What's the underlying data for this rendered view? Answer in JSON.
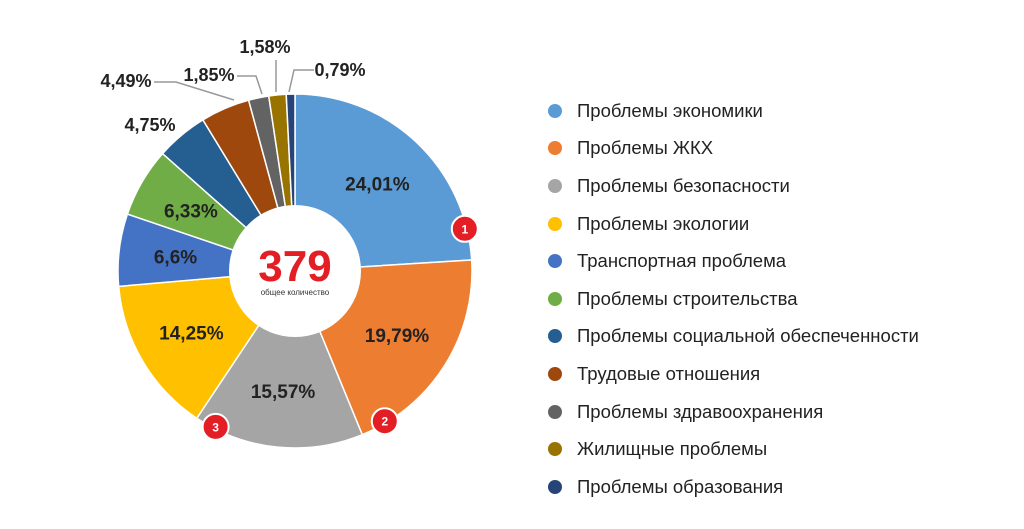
{
  "chart_data": {
    "type": "pie",
    "variant": "donut",
    "center_total": "379",
    "center_caption": "общее количество",
    "legend_position": "right",
    "slices": [
      {
        "name": "Проблемы экономики",
        "value": 24.01,
        "label": "24,01%",
        "color": "#5b9bd5",
        "rank": "1"
      },
      {
        "name": "Проблемы ЖКХ",
        "value": 19.79,
        "label": "19,79%",
        "color": "#ed7d31",
        "rank": "2"
      },
      {
        "name": "Проблемы безопасности",
        "value": 15.57,
        "label": "15,57%",
        "color": "#a5a5a5",
        "rank": "3"
      },
      {
        "name": "Проблемы экологии",
        "value": 14.25,
        "label": "14,25%",
        "color": "#ffc000"
      },
      {
        "name": "Транспортная проблема",
        "value": 6.6,
        "label": "6,6%",
        "color": "#4472c4"
      },
      {
        "name": "Проблемы строительства",
        "value": 6.33,
        "label": "6,33%",
        "color": "#70ad47"
      },
      {
        "name": "Проблемы социальной обеспеченности",
        "value": 4.75,
        "label": "4,75%",
        "color": "#255e91"
      },
      {
        "name": "Трудовые отношения",
        "value": 4.49,
        "label": "4,49%",
        "color": "#9e480e"
      },
      {
        "name": "Проблемы здравоохранения",
        "value": 1.85,
        "label": "1,85%",
        "color": "#636363"
      },
      {
        "name": "Жилищные проблемы",
        "value": 1.58,
        "label": "1,58%",
        "color": "#997300"
      },
      {
        "name": "Проблемы образования",
        "value": 0.79,
        "label": "0,79%",
        "color": "#264478"
      }
    ]
  },
  "colors": {
    "rank_badge": "#e31e24",
    "leader_line": "#999999",
    "slice_border": "#ffffff"
  }
}
